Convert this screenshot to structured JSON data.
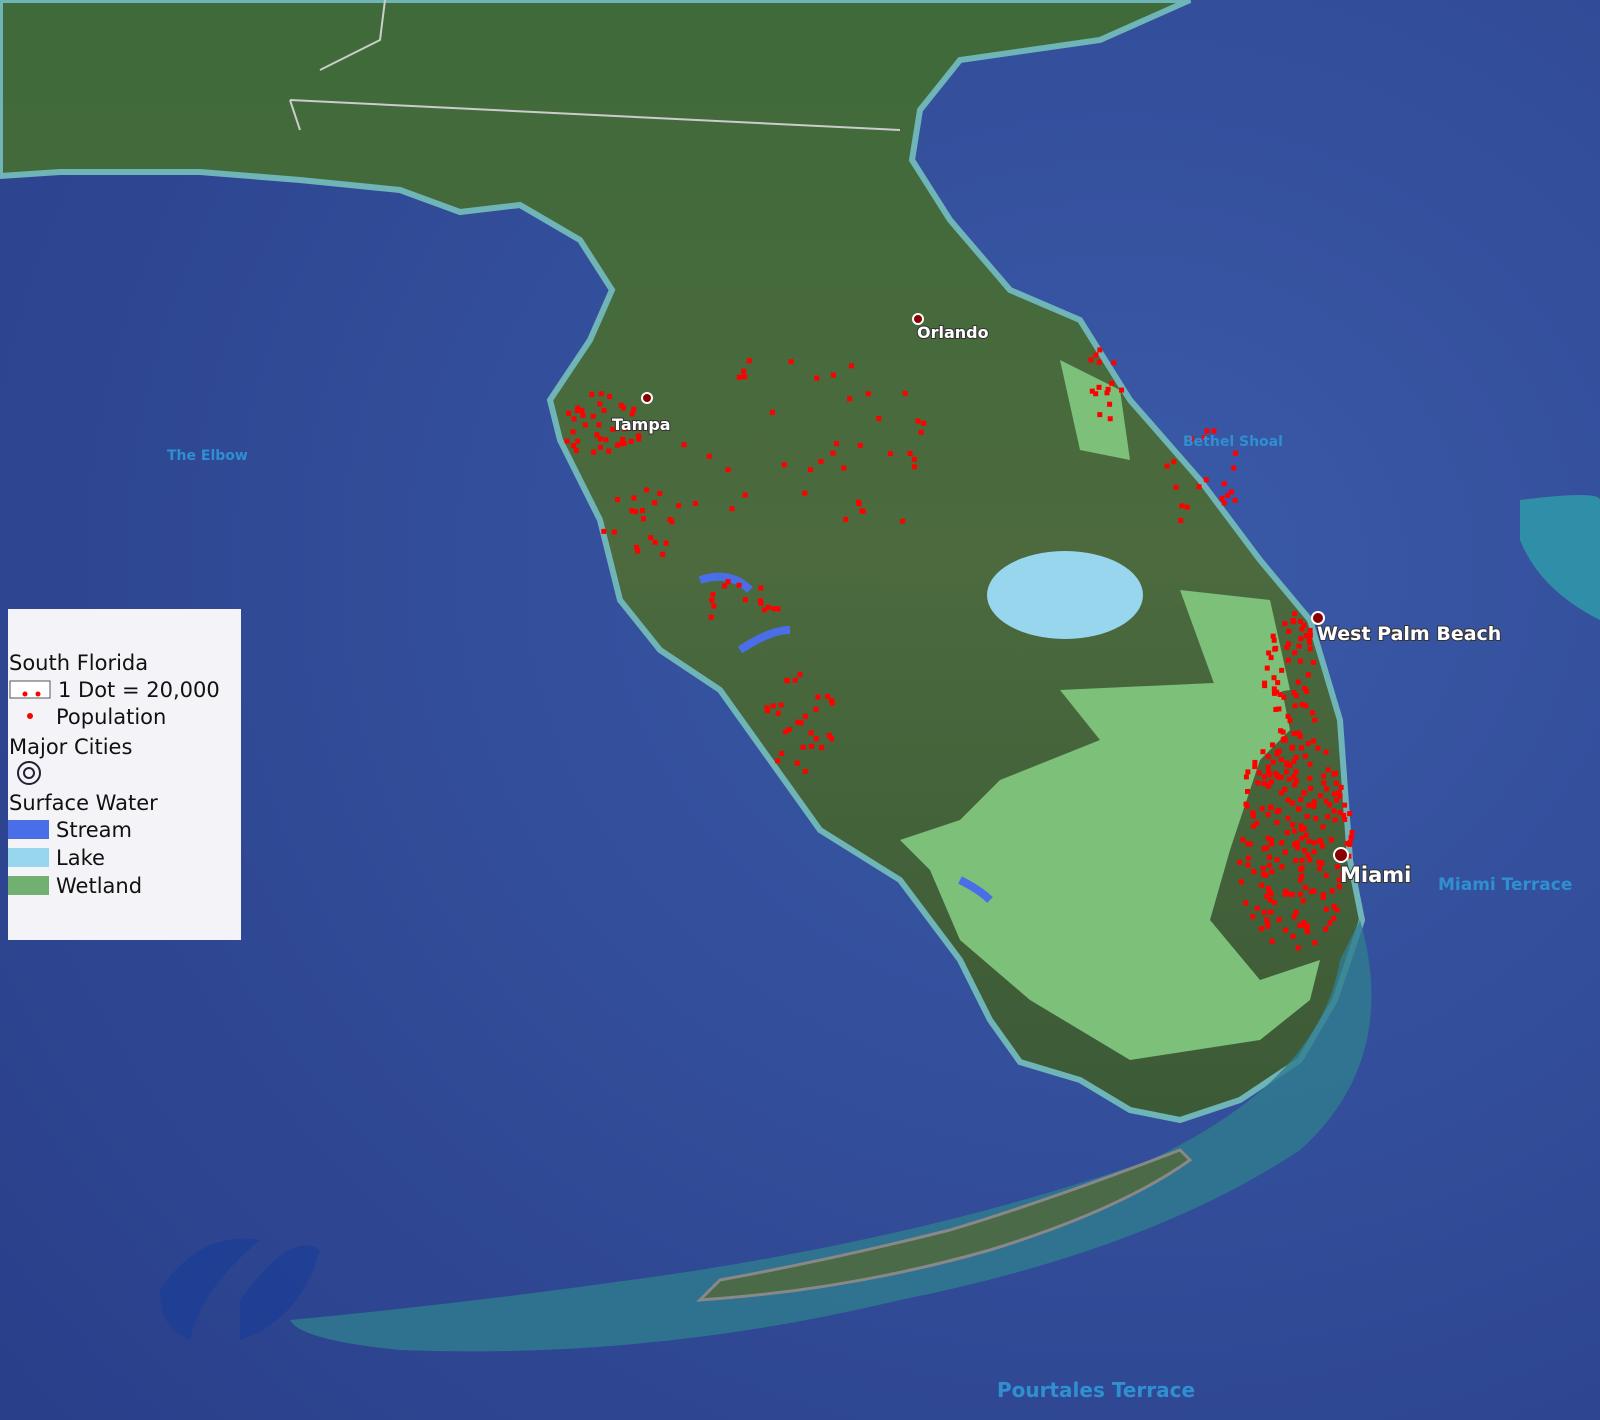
{
  "map": {
    "cities": [
      {
        "label": "Orlando"
      },
      {
        "label": "Tampa"
      },
      {
        "label": "West Palm Beach"
      },
      {
        "label": "Miami"
      }
    ],
    "features": [
      "The Elbow",
      "Bethel Shoal",
      "Miami Terrace",
      "Pourtales Terrace"
    ]
  },
  "legend": {
    "title": "South Florida",
    "dot_scale": "1 Dot = 20,000",
    "population": "Population",
    "cities_title": "Major Cities",
    "water_title": "Surface Water",
    "items": [
      {
        "label": "Stream",
        "color": "#4a6ee8"
      },
      {
        "label": "Lake",
        "color": "#98d6ee"
      },
      {
        "label": "Wetland",
        "color": "#72b072"
      }
    ]
  }
}
